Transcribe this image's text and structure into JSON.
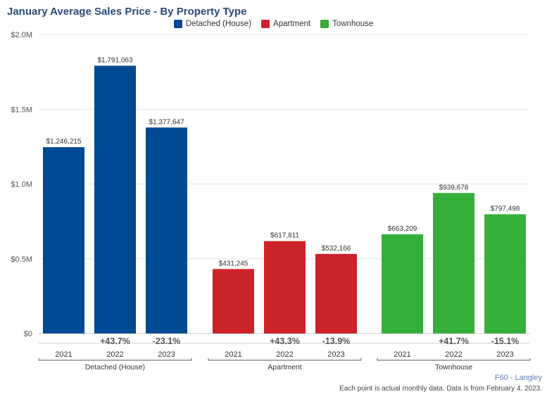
{
  "chart_data": {
    "type": "bar",
    "title": "January Average Sales Price - By Property Type",
    "ylim": [
      0,
      2000000
    ],
    "yticks": [
      {
        "value": 0,
        "label": "$0"
      },
      {
        "value": 500000,
        "label": "$0.5M"
      },
      {
        "value": 1000000,
        "label": "$1.0M"
      },
      {
        "value": 1500000,
        "label": "$1.5M"
      },
      {
        "value": 2000000,
        "label": "$2.0M"
      }
    ],
    "grid": true,
    "legend_position": "top-center",
    "groups": [
      {
        "name": "Detached (House)",
        "color": "#004a93",
        "bars": [
          {
            "year": "2021",
            "value": 1246215,
            "label": "$1,246,215",
            "change": ""
          },
          {
            "year": "2022",
            "value": 1791063,
            "label": "$1,791,063",
            "change": "+43.7%"
          },
          {
            "year": "2023",
            "value": 1377647,
            "label": "$1,377,647",
            "change": "-23.1%"
          }
        ]
      },
      {
        "name": "Apartment",
        "color": "#cc2229",
        "bars": [
          {
            "year": "2021",
            "value": 431245,
            "label": "$431,245",
            "change": ""
          },
          {
            "year": "2022",
            "value": 617811,
            "label": "$617,811",
            "change": "+43.3%"
          },
          {
            "year": "2023",
            "value": 532166,
            "label": "$532,166",
            "change": "-13.9%"
          }
        ]
      },
      {
        "name": "Townhouse",
        "color": "#34b03a",
        "bars": [
          {
            "year": "2021",
            "value": 663209,
            "label": "$663,209",
            "change": ""
          },
          {
            "year": "2022",
            "value": 939678,
            "label": "$939,678",
            "change": "+41.7%"
          },
          {
            "year": "2023",
            "value": 797498,
            "label": "$797,498",
            "change": "-15.1%"
          }
        ]
      }
    ]
  },
  "legend": [
    {
      "label": "Detached (House)",
      "color": "#004a93"
    },
    {
      "label": "Apartment",
      "color": "#cc2229"
    },
    {
      "label": "Townhouse",
      "color": "#34b03a"
    }
  ],
  "footer": {
    "region": "F60 - Langley",
    "note": "Each point is actual monthly data. Data is from February 4, 2023."
  }
}
